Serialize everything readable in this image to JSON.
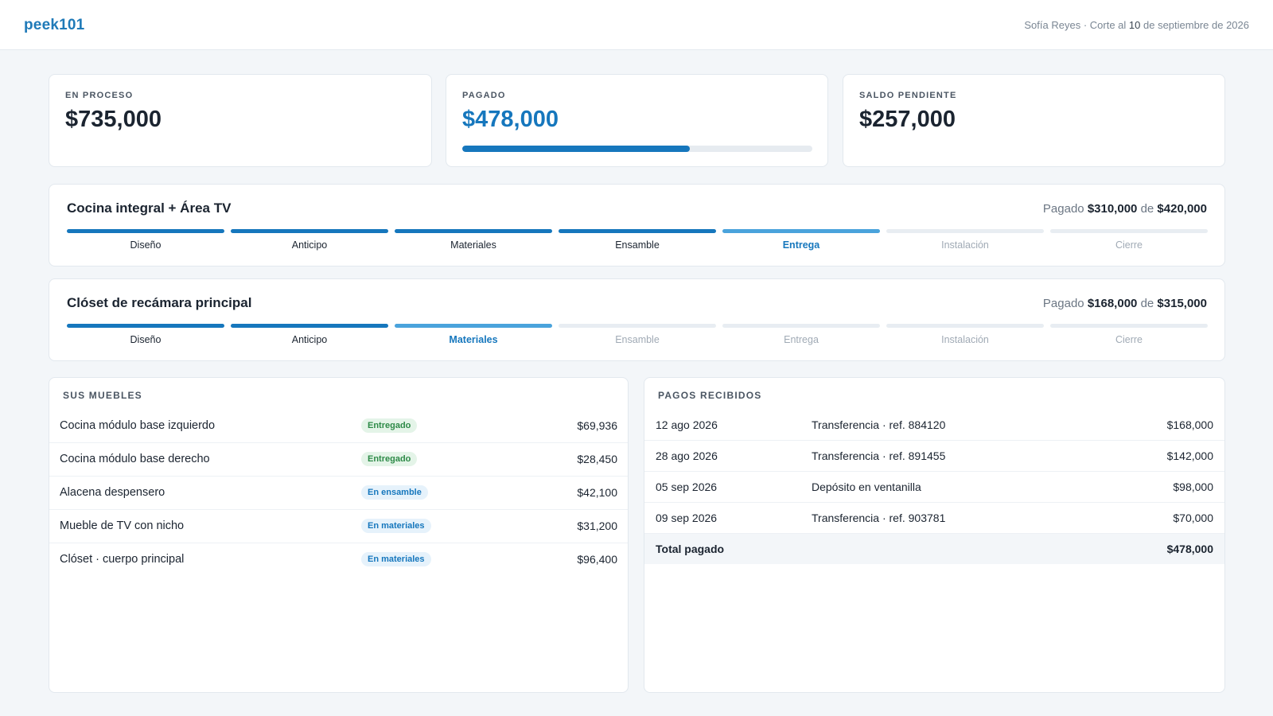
{
  "header": {
    "logo": "peek101",
    "client": "Sofía Reyes",
    "separator": " · ",
    "cutoff_prefix": "Corte al ",
    "cutoff_day": "10",
    "cutoff_rest": " de septiembre de 2026"
  },
  "stats": {
    "in_process": {
      "label": "EN PROCESO",
      "value": "$735,000"
    },
    "paid": {
      "label": "PAGADO",
      "value": "$478,000",
      "progress": 0.65
    },
    "pending": {
      "label": "SALDO PENDIENTE",
      "value": "$257,000"
    }
  },
  "projects": [
    {
      "title": "Cocina integral + Área TV",
      "paid_prefix": "Pagado",
      "paid_amount": "$310,000",
      "paid_of": "de",
      "total_amount": "$420,000",
      "steps": [
        {
          "label": "Diseño",
          "status": "done"
        },
        {
          "label": "Anticipo",
          "status": "done"
        },
        {
          "label": "Materiales",
          "status": "done"
        },
        {
          "label": "Ensamble",
          "status": "done"
        },
        {
          "label": "Entrega",
          "status": "current"
        },
        {
          "label": "Instalación",
          "status": "pending"
        },
        {
          "label": "Cierre",
          "status": "pending"
        }
      ]
    },
    {
      "title": "Clóset de recámara principal",
      "paid_prefix": "Pagado",
      "paid_amount": "$168,000",
      "paid_of": "de",
      "total_amount": "$315,000",
      "steps": [
        {
          "label": "Diseño",
          "status": "done"
        },
        {
          "label": "Anticipo",
          "status": "done"
        },
        {
          "label": "Materiales",
          "status": "current"
        },
        {
          "label": "Ensamble",
          "status": "pending"
        },
        {
          "label": "Entrega",
          "status": "pending"
        },
        {
          "label": "Instalación",
          "status": "pending"
        },
        {
          "label": "Cierre",
          "status": "pending"
        }
      ]
    }
  ],
  "furniture": {
    "title": "SUS MUEBLES",
    "items": [
      {
        "name": "Cocina módulo base izquierdo",
        "status": "Entregado",
        "status_color": "green",
        "amount": "$69,936"
      },
      {
        "name": "Cocina módulo base derecho",
        "status": "Entregado",
        "status_color": "green",
        "amount": "$28,450"
      },
      {
        "name": "Alacena despensero",
        "status": "En ensamble",
        "status_color": "blue",
        "amount": "$42,100"
      },
      {
        "name": "Mueble de TV con nicho",
        "status": "En materiales",
        "status_color": "blue",
        "amount": "$31,200"
      },
      {
        "name": "Clóset · cuerpo principal",
        "status": "En materiales",
        "status_color": "blue",
        "amount": "$96,400"
      }
    ]
  },
  "payments": {
    "title": "PAGOS RECIBIDOS",
    "items": [
      {
        "date": "12 ago 2026",
        "desc": "Transferencia · ref. 884120",
        "amount": "$168,000"
      },
      {
        "date": "28 ago 2026",
        "desc": "Transferencia · ref. 891455",
        "amount": "$142,000"
      },
      {
        "date": "05 sep 2026",
        "desc": "Depósito en ventanilla",
        "amount": "$98,000"
      },
      {
        "date": "09 sep 2026",
        "desc": "Transferencia · ref. 903781",
        "amount": "$70,000"
      }
    ],
    "total_label": "Total pagado",
    "total_amount": "$478,000"
  },
  "colors": {
    "accent": "#1677bd",
    "accent_light": "#4aa3dc",
    "success": "#2d8a47",
    "background": "#f3f6f9"
  }
}
